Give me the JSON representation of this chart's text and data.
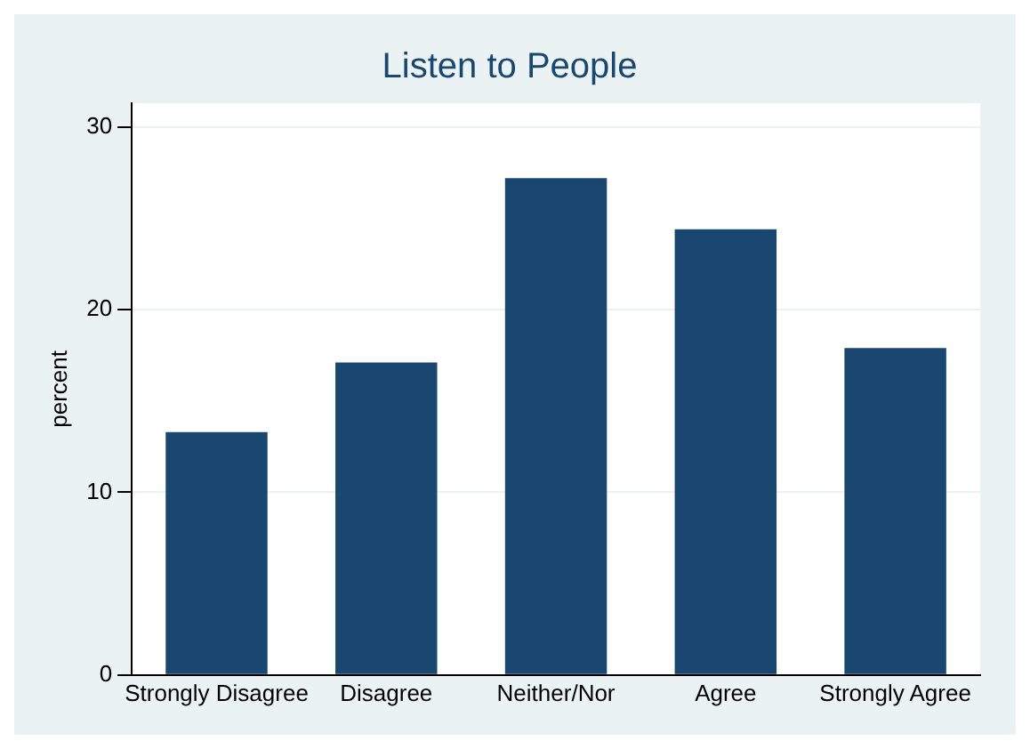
{
  "chart_data": {
    "type": "bar",
    "title": "Listen to People",
    "ylabel": "percent",
    "categories": [
      "Strongly Disagree",
      "Disagree",
      "Neither/Nor",
      "Agree",
      "Strongly Agree"
    ],
    "values": [
      13.3,
      17.1,
      27.2,
      24.4,
      17.9
    ],
    "color": "#1a476f",
    "ylim": [
      0,
      31.3
    ],
    "yticks": [
      0,
      10,
      20,
      30
    ],
    "grid": "y",
    "legend": false
  }
}
